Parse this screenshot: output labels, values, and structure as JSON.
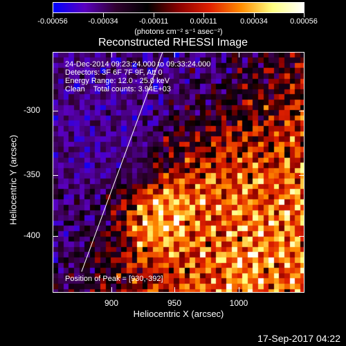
{
  "colorbar": {
    "tick_labels": [
      "-0.00056",
      "-0.00034",
      "-0.00011",
      "0.00011",
      "0.00034",
      "0.00056"
    ],
    "units": "(photons cm⁻² s⁻¹ asec⁻²)",
    "colors": [
      "#0000ff",
      "#5a00c0",
      "#300030",
      "#000000",
      "#8a0000",
      "#e02000",
      "#ff8c00",
      "#ffff80",
      "#ffffff"
    ]
  },
  "plot": {
    "title": "Reconstructed RHESSI Image",
    "info_lines": [
      "24-Dec-2014 09:23:24.000 to 09:33:24.000",
      "Detectors: 3F 6F 7F 9F, Att 0",
      "Energy Range: 12.0 - 25.0 keV",
      "Clean    Total counts: 3.94E+03"
    ],
    "peak_text": "Position of Peak = [930,-392]",
    "xlabel": "Heliocentric X (arcsec)",
    "ylabel": "Heliocentric Y (arcsec)",
    "x_ticks": [
      "900",
      "950",
      "1000"
    ],
    "y_ticks": [
      "-300",
      "-350",
      "-400"
    ],
    "x_range": [
      859,
      1046
    ],
    "y_range": [
      -269,
      -446
    ],
    "limb_line": [
      [
        880,
        -430
      ],
      [
        940,
        -269
      ]
    ]
  },
  "footer": {
    "date": "17-Sep-2017 04:22"
  }
}
